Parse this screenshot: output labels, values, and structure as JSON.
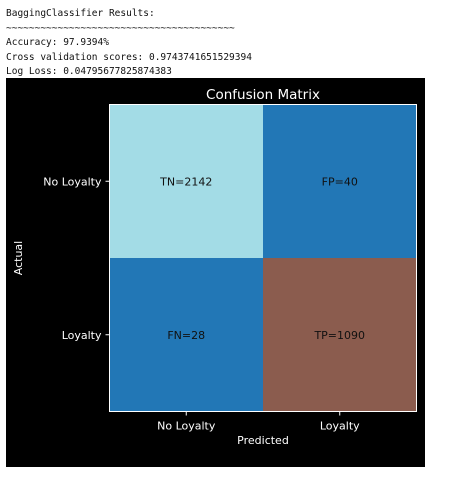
{
  "output": {
    "header": "BaggingClassifier Results:",
    "separator": "~~~~~~~~~~~~~~~~~~~~~~~~~~~~~~~~~~~~~~~~",
    "accuracy_line": "Accuracy: 97.9394%",
    "cv_line": "Cross validation scores: 0.9743741651529394",
    "logloss_line": "Log Loss: 0.04795677825874383"
  },
  "colors": {
    "figure_bg": "#000000",
    "text": "#ffffff",
    "cell_text": "#111111",
    "tn": "#a3dce6",
    "fp": "#2277b6",
    "fn": "#2277b6",
    "tp": "#8b5c4e",
    "frame": "#ffffff"
  },
  "chart_data": {
    "type": "heatmap",
    "title": "Confusion Matrix",
    "xlabel": "Predicted",
    "ylabel": "Actual",
    "x_categories": [
      "No Loyalty",
      "Loyalty"
    ],
    "y_categories": [
      "No Loyalty",
      "Loyalty"
    ],
    "values": [
      [
        2142,
        40
      ],
      [
        28,
        1090
      ]
    ],
    "cell_labels": [
      [
        "TN=2142",
        "FP=40"
      ],
      [
        "FN=28",
        "TP=1090"
      ]
    ]
  }
}
